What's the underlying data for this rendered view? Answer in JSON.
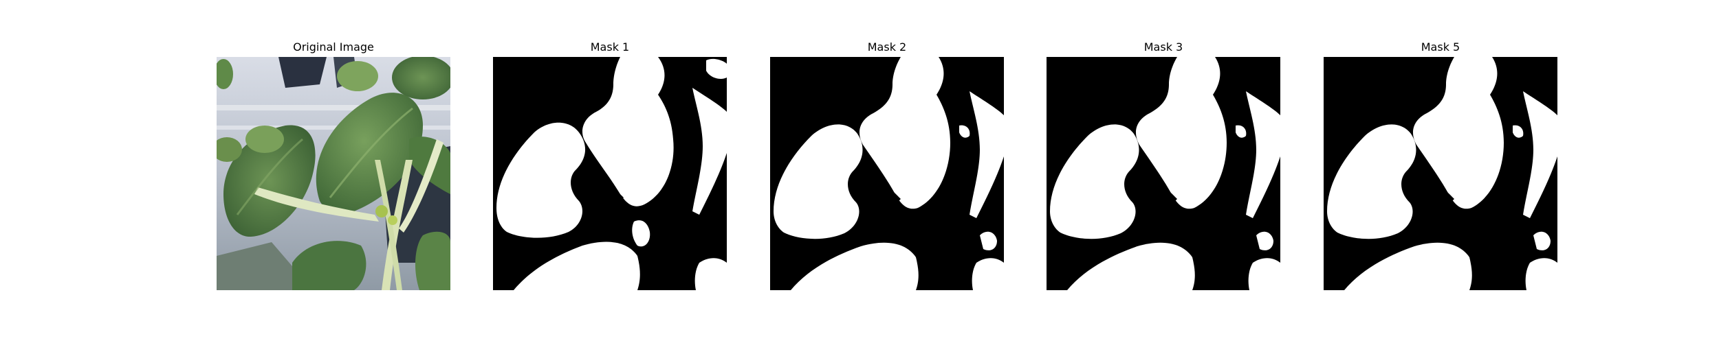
{
  "panels": [
    {
      "title": "Original Image"
    },
    {
      "title": "Mask 1"
    },
    {
      "title": "Mask 2"
    },
    {
      "title": "Mask 3"
    },
    {
      "title": "Mask 5"
    }
  ],
  "colors": {
    "mask_foreground": "#ffffff",
    "mask_background": "#000000",
    "leaf_dark": "#3f6a39",
    "leaf_mid": "#557d46",
    "leaf_light": "#6f9556",
    "stem": "#d8e3b8",
    "backdrop": "#bfc6d2"
  }
}
